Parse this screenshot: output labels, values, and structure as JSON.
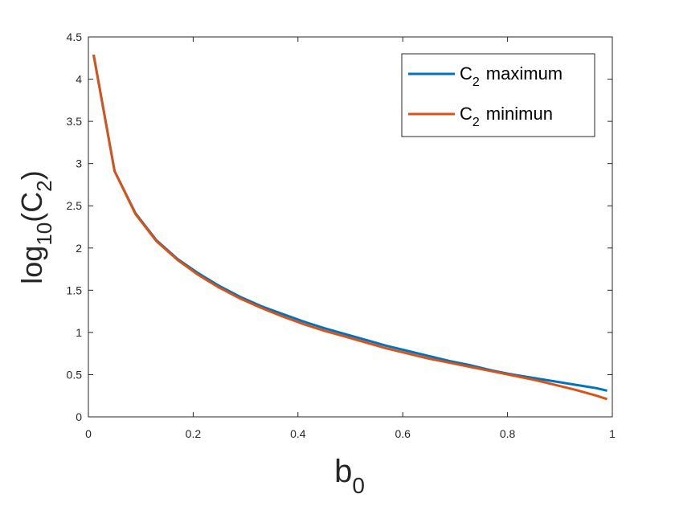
{
  "chart_data": {
    "type": "line",
    "xlim": [
      0,
      1
    ],
    "ylim": [
      0,
      4.5
    ],
    "x_ticks": [
      "0",
      "0.2",
      "0.4",
      "0.6",
      "0.8",
      "1"
    ],
    "y_ticks": [
      "0",
      "0.5",
      "1",
      "1.5",
      "2",
      "2.5",
      "3",
      "3.5",
      "4",
      "4.5"
    ],
    "xlabel": {
      "base": "b",
      "sub": "0"
    },
    "ylabel": {
      "pre": "log",
      "sub": "10",
      "mid": "(C",
      "sub2": "2",
      "post": ")"
    },
    "grid": false,
    "legend_position": "top-right",
    "series": [
      {
        "name": "C2 maximum",
        "label_base": "C",
        "label_sub": "2",
        "label_rest": "maximum",
        "color": "#0072BD",
        "x": [
          0.01,
          0.05,
          0.09,
          0.13,
          0.17,
          0.21,
          0.25,
          0.29,
          0.33,
          0.37,
          0.41,
          0.45,
          0.49,
          0.53,
          0.57,
          0.61,
          0.65,
          0.69,
          0.73,
          0.77,
          0.81,
          0.85,
          0.89,
          0.93,
          0.97,
          0.99
        ],
        "y": [
          4.29,
          2.91,
          2.41,
          2.09,
          1.87,
          1.7,
          1.55,
          1.42,
          1.31,
          1.22,
          1.13,
          1.05,
          0.98,
          0.91,
          0.84,
          0.78,
          0.72,
          0.66,
          0.61,
          0.55,
          0.5,
          0.46,
          0.42,
          0.38,
          0.34,
          0.31
        ]
      },
      {
        "name": "C2 minimun",
        "label_base": "C",
        "label_sub": "2",
        "label_rest": "minimun",
        "color": "#D95319",
        "x": [
          0.01,
          0.05,
          0.09,
          0.13,
          0.17,
          0.21,
          0.25,
          0.29,
          0.33,
          0.37,
          0.41,
          0.45,
          0.49,
          0.53,
          0.57,
          0.61,
          0.65,
          0.69,
          0.73,
          0.77,
          0.81,
          0.85,
          0.89,
          0.93,
          0.97,
          0.99
        ],
        "y": [
          4.29,
          2.91,
          2.4,
          2.08,
          1.86,
          1.68,
          1.53,
          1.4,
          1.29,
          1.19,
          1.1,
          1.02,
          0.95,
          0.88,
          0.81,
          0.75,
          0.69,
          0.64,
          0.59,
          0.54,
          0.49,
          0.44,
          0.38,
          0.32,
          0.25,
          0.21
        ]
      }
    ]
  }
}
